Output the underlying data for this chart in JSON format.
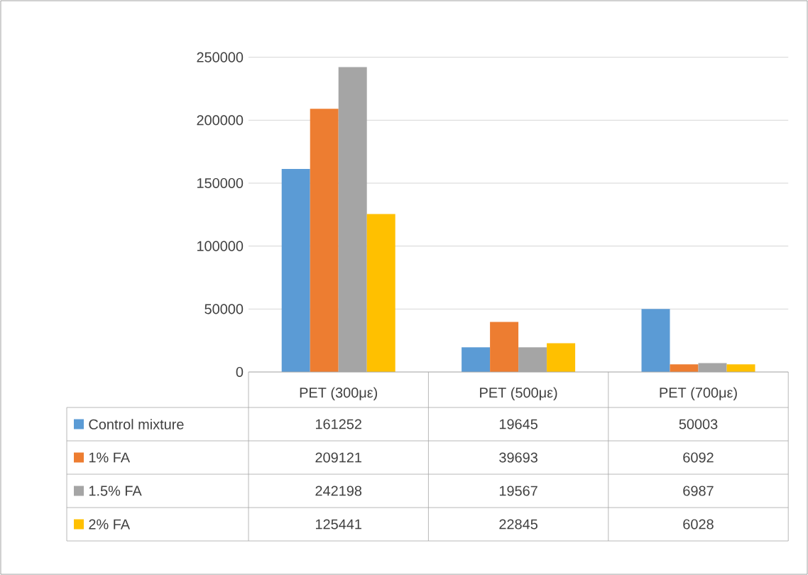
{
  "chart_data": {
    "type": "bar",
    "categories": [
      "PET (300με)",
      "PET (500με)",
      "PET (700με)"
    ],
    "series": [
      {
        "name": "Control mixture",
        "color": "#5b9bd5",
        "values": [
          161252,
          19645,
          50003
        ]
      },
      {
        "name": "1% FA",
        "color": "#ed7d31",
        "values": [
          209121,
          39693,
          6092
        ]
      },
      {
        "name": "1.5% FA",
        "color": "#a5a5a5",
        "values": [
          242198,
          19567,
          6987
        ]
      },
      {
        "name": "2% FA",
        "color": "#ffc000",
        "values": [
          125441,
          22845,
          6028
        ]
      }
    ],
    "ylim": [
      0,
      250000
    ],
    "yticks": [
      0,
      50000,
      100000,
      150000,
      200000,
      250000
    ],
    "grid": "y",
    "legend": "bottom",
    "data_labels": true
  }
}
